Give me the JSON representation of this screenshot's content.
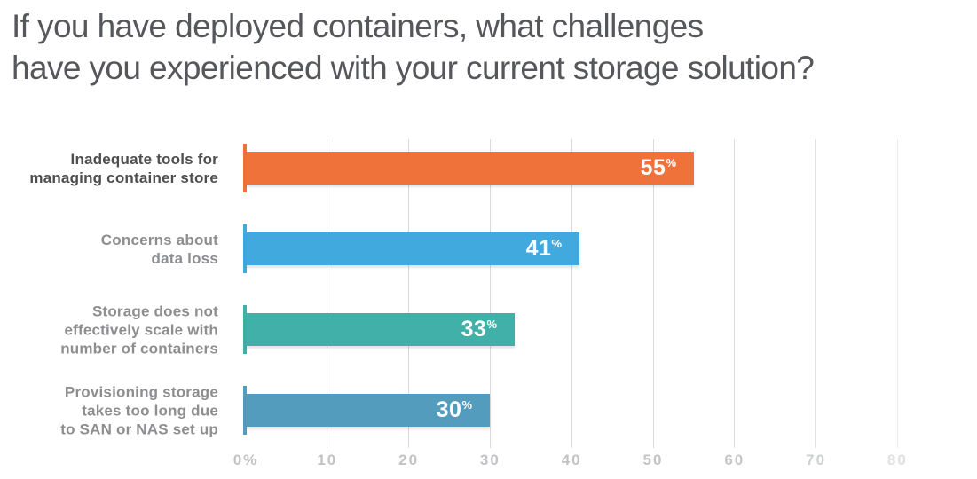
{
  "title": {
    "line1": "If you have deployed containers, what challenges",
    "line2": "have you experienced with your current storage solution?"
  },
  "value_suffix": "%",
  "chart_data": {
    "type": "bar",
    "orientation": "horizontal",
    "title": "If you have deployed containers, what challenges have you experienced with your current storage solution?",
    "categories": [
      "Inadequate tools for managing container store",
      "Concerns about data loss",
      "Storage does not effectively scale with number of containers",
      "Provisioning storage takes too long due to SAN or NAS set up"
    ],
    "values": [
      55,
      41,
      33,
      30
    ],
    "unit": "%",
    "xlabel": "",
    "ylabel": "",
    "xlim": [
      0,
      80
    ],
    "x_tick_labels": [
      "0%",
      "10",
      "20",
      "30",
      "40",
      "50",
      "60",
      "70",
      "80"
    ],
    "x_tick_values": [
      0,
      10,
      20,
      30,
      40,
      50,
      60,
      70,
      80
    ],
    "grid": true,
    "legend": false,
    "data_labels_inside_bars": true
  },
  "bars": [
    {
      "label_lines": [
        "Inadequate tools for",
        "managing container store"
      ],
      "value": "55",
      "color": "#ee7239",
      "label_color": "#4e4e50"
    },
    {
      "label_lines": [
        "Concerns about",
        "data loss"
      ],
      "value": "41",
      "color": "#42a9de",
      "label_color": "#8d8e90"
    },
    {
      "label_lines": [
        "Storage does not",
        "effectively scale with",
        "number of containers"
      ],
      "value": "33",
      "color": "#41b0a8",
      "label_color": "#8d8e90"
    },
    {
      "label_lines": [
        "Provisioning storage",
        "takes too long due",
        "to SAN or NAS set up"
      ],
      "value": "30",
      "color": "#549cbd",
      "label_color": "#8d8e90"
    }
  ],
  "axis": {
    "gridline_color": "#d9dadb",
    "ticks": [
      {
        "label": "0%",
        "value": 0,
        "color": "#c2c3c5"
      },
      {
        "label": "10",
        "value": 10,
        "color": "#c2c3c5",
        "grid_color": "#d9dadb"
      },
      {
        "label": "20",
        "value": 20,
        "color": "#c2c3c5",
        "grid_color": "#d9dadb"
      },
      {
        "label": "30",
        "value": 30,
        "color": "#c2c3c5",
        "grid_color": "#d9dadb"
      },
      {
        "label": "40",
        "value": 40,
        "color": "#c2c3c5",
        "grid_color": "#d9dadb"
      },
      {
        "label": "50",
        "value": 50,
        "color": "#c3c4c6",
        "grid_color": "#d9dadb"
      },
      {
        "label": "60",
        "value": 60,
        "color": "#c6c7c9",
        "grid_color": "#dbdcdd"
      },
      {
        "label": "70",
        "value": 70,
        "color": "#ced0d2",
        "grid_color": "#dee0e1"
      },
      {
        "label": "80",
        "value": 80,
        "color": "#dfe0e2",
        "grid_color": "#eaebec"
      }
    ]
  }
}
